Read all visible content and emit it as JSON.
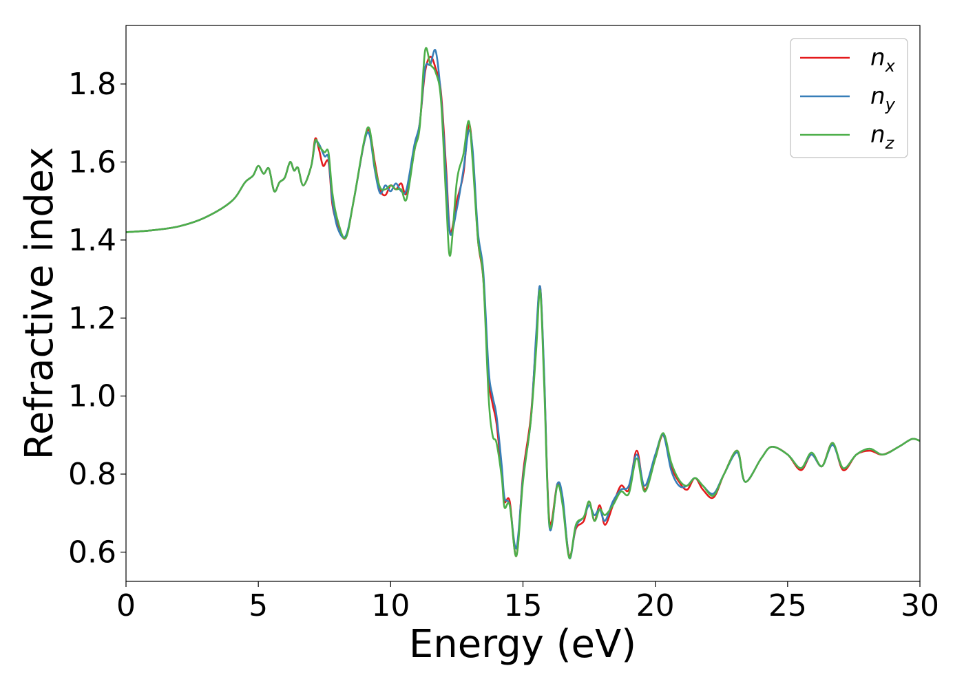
{
  "chart_data": {
    "type": "line",
    "title": "",
    "xlabel": "Energy (eV)",
    "ylabel": "Refractive index",
    "xlim": [
      0,
      30
    ],
    "ylim": [
      0.525,
      1.95
    ],
    "xticks": [
      0,
      5,
      10,
      15,
      20,
      25,
      30
    ],
    "xtick_labels": [
      "0",
      "5",
      "10",
      "15",
      "20",
      "25",
      "30"
    ],
    "yticks": [
      0.6,
      0.8,
      1.0,
      1.2,
      1.4,
      1.6,
      1.8
    ],
    "ytick_labels": [
      "0.6",
      "0.8",
      "1.0",
      "1.2",
      "1.4",
      "1.6",
      "1.8"
    ],
    "grid": false,
    "legend_position": "top-right",
    "series": [
      {
        "name": "n_x",
        "label_base": "n",
        "label_sub": "x",
        "color": "#e41a1c",
        "points": [
          [
            0,
            1.42
          ],
          [
            1,
            1.425
          ],
          [
            2,
            1.435
          ],
          [
            3,
            1.458
          ],
          [
            4,
            1.5
          ],
          [
            4.5,
            1.548
          ],
          [
            4.8,
            1.565
          ],
          [
            5,
            1.59
          ],
          [
            5.2,
            1.57
          ],
          [
            5.4,
            1.583
          ],
          [
            5.6,
            1.525
          ],
          [
            5.8,
            1.548
          ],
          [
            6,
            1.56
          ],
          [
            6.2,
            1.6
          ],
          [
            6.35,
            1.578
          ],
          [
            6.5,
            1.585
          ],
          [
            6.7,
            1.54
          ],
          [
            7,
            1.59
          ],
          [
            7.15,
            1.66
          ],
          [
            7.3,
            1.63
          ],
          [
            7.45,
            1.59
          ],
          [
            7.65,
            1.6
          ],
          [
            7.8,
            1.49
          ],
          [
            8,
            1.44
          ],
          [
            8.3,
            1.405
          ],
          [
            8.6,
            1.5
          ],
          [
            9,
            1.65
          ],
          [
            9.2,
            1.68
          ],
          [
            9.4,
            1.6
          ],
          [
            9.6,
            1.53
          ],
          [
            9.8,
            1.515
          ],
          [
            10,
            1.54
          ],
          [
            10.2,
            1.53
          ],
          [
            10.4,
            1.545
          ],
          [
            10.6,
            1.52
          ],
          [
            10.9,
            1.63
          ],
          [
            11.1,
            1.7
          ],
          [
            11.3,
            1.83
          ],
          [
            11.5,
            1.87
          ],
          [
            11.7,
            1.84
          ],
          [
            11.9,
            1.78
          ],
          [
            12.1,
            1.58
          ],
          [
            12.25,
            1.42
          ],
          [
            12.5,
            1.5
          ],
          [
            12.75,
            1.57
          ],
          [
            12.95,
            1.695
          ],
          [
            13.1,
            1.62
          ],
          [
            13.3,
            1.4
          ],
          [
            13.5,
            1.3
          ],
          [
            13.7,
            1.05
          ],
          [
            13.85,
            0.98
          ],
          [
            14,
            0.93
          ],
          [
            14.2,
            0.8
          ],
          [
            14.3,
            0.73
          ],
          [
            14.5,
            0.73
          ],
          [
            14.75,
            0.59
          ],
          [
            15,
            0.8
          ],
          [
            15.3,
            0.95
          ],
          [
            15.5,
            1.15
          ],
          [
            15.65,
            1.28
          ],
          [
            15.8,
            1.05
          ],
          [
            16,
            0.68
          ],
          [
            16.3,
            0.775
          ],
          [
            16.5,
            0.73
          ],
          [
            16.75,
            0.59
          ],
          [
            17,
            0.66
          ],
          [
            17.3,
            0.68
          ],
          [
            17.5,
            0.73
          ],
          [
            17.7,
            0.68
          ],
          [
            17.9,
            0.72
          ],
          [
            18.1,
            0.67
          ],
          [
            18.4,
            0.72
          ],
          [
            18.7,
            0.77
          ],
          [
            19,
            0.76
          ],
          [
            19.3,
            0.86
          ],
          [
            19.6,
            0.76
          ],
          [
            20,
            0.84
          ],
          [
            20.3,
            0.9
          ],
          [
            20.6,
            0.82
          ],
          [
            20.9,
            0.78
          ],
          [
            21.2,
            0.76
          ],
          [
            21.5,
            0.79
          ],
          [
            21.8,
            0.76
          ],
          [
            22.2,
            0.74
          ],
          [
            22.6,
            0.8
          ],
          [
            23.1,
            0.86
          ],
          [
            23.4,
            0.78
          ],
          [
            24,
            0.84
          ],
          [
            24.4,
            0.87
          ],
          [
            25,
            0.85
          ],
          [
            25.5,
            0.81
          ],
          [
            25.9,
            0.85
          ],
          [
            26.3,
            0.82
          ],
          [
            26.7,
            0.88
          ],
          [
            27.1,
            0.81
          ],
          [
            27.6,
            0.85
          ],
          [
            28.1,
            0.86
          ],
          [
            28.6,
            0.85
          ],
          [
            29.2,
            0.87
          ],
          [
            29.7,
            0.89
          ],
          [
            30,
            0.885
          ]
        ]
      },
      {
        "name": "n_y",
        "label_base": "n",
        "label_sub": "y",
        "color": "#377eb8",
        "points": [
          [
            0,
            1.42
          ],
          [
            1,
            1.425
          ],
          [
            2,
            1.435
          ],
          [
            3,
            1.458
          ],
          [
            4,
            1.5
          ],
          [
            4.5,
            1.548
          ],
          [
            4.8,
            1.565
          ],
          [
            5,
            1.59
          ],
          [
            5.2,
            1.57
          ],
          [
            5.4,
            1.583
          ],
          [
            5.6,
            1.525
          ],
          [
            5.8,
            1.548
          ],
          [
            6,
            1.56
          ],
          [
            6.2,
            1.6
          ],
          [
            6.35,
            1.578
          ],
          [
            6.5,
            1.585
          ],
          [
            6.7,
            1.54
          ],
          [
            7,
            1.59
          ],
          [
            7.15,
            1.65
          ],
          [
            7.3,
            1.645
          ],
          [
            7.5,
            1.615
          ],
          [
            7.65,
            1.61
          ],
          [
            7.8,
            1.5
          ],
          [
            8,
            1.43
          ],
          [
            8.3,
            1.41
          ],
          [
            8.6,
            1.5
          ],
          [
            9,
            1.65
          ],
          [
            9.2,
            1.67
          ],
          [
            9.4,
            1.58
          ],
          [
            9.6,
            1.52
          ],
          [
            9.8,
            1.54
          ],
          [
            10,
            1.525
          ],
          [
            10.2,
            1.545
          ],
          [
            10.4,
            1.525
          ],
          [
            10.6,
            1.53
          ],
          [
            10.9,
            1.645
          ],
          [
            11.1,
            1.7
          ],
          [
            11.3,
            1.84
          ],
          [
            11.5,
            1.85
          ],
          [
            11.7,
            1.885
          ],
          [
            11.9,
            1.77
          ],
          [
            12.1,
            1.56
          ],
          [
            12.25,
            1.415
          ],
          [
            12.5,
            1.48
          ],
          [
            12.75,
            1.58
          ],
          [
            12.95,
            1.68
          ],
          [
            13.1,
            1.63
          ],
          [
            13.3,
            1.42
          ],
          [
            13.5,
            1.32
          ],
          [
            13.7,
            1.07
          ],
          [
            13.85,
            1.0
          ],
          [
            14,
            0.95
          ],
          [
            14.2,
            0.82
          ],
          [
            14.3,
            0.74
          ],
          [
            14.5,
            0.72
          ],
          [
            14.75,
            0.61
          ],
          [
            15,
            0.79
          ],
          [
            15.3,
            0.94
          ],
          [
            15.5,
            1.16
          ],
          [
            15.65,
            1.28
          ],
          [
            15.8,
            1.06
          ],
          [
            16,
            0.665
          ],
          [
            16.3,
            0.775
          ],
          [
            16.5,
            0.74
          ],
          [
            16.75,
            0.585
          ],
          [
            17,
            0.665
          ],
          [
            17.3,
            0.69
          ],
          [
            17.5,
            0.72
          ],
          [
            17.7,
            0.695
          ],
          [
            17.9,
            0.71
          ],
          [
            18.1,
            0.68
          ],
          [
            18.4,
            0.73
          ],
          [
            18.7,
            0.76
          ],
          [
            19,
            0.77
          ],
          [
            19.3,
            0.85
          ],
          [
            19.6,
            0.77
          ],
          [
            20,
            0.85
          ],
          [
            20.3,
            0.9
          ],
          [
            20.6,
            0.81
          ],
          [
            20.9,
            0.77
          ],
          [
            21.2,
            0.77
          ],
          [
            21.5,
            0.79
          ],
          [
            21.8,
            0.77
          ],
          [
            22.2,
            0.75
          ],
          [
            22.6,
            0.8
          ],
          [
            23.1,
            0.855
          ],
          [
            23.4,
            0.78
          ],
          [
            24,
            0.84
          ],
          [
            24.4,
            0.87
          ],
          [
            25,
            0.85
          ],
          [
            25.5,
            0.815
          ],
          [
            25.9,
            0.85
          ],
          [
            26.3,
            0.82
          ],
          [
            26.7,
            0.875
          ],
          [
            27.1,
            0.815
          ],
          [
            27.6,
            0.85
          ],
          [
            28.1,
            0.865
          ],
          [
            28.6,
            0.85
          ],
          [
            29.2,
            0.87
          ],
          [
            29.7,
            0.89
          ],
          [
            30,
            0.885
          ]
        ]
      },
      {
        "name": "n_z",
        "label_base": "n",
        "label_sub": "z",
        "color": "#4daf4a",
        "points": [
          [
            0,
            1.42
          ],
          [
            1,
            1.425
          ],
          [
            2,
            1.435
          ],
          [
            3,
            1.458
          ],
          [
            4,
            1.5
          ],
          [
            4.5,
            1.548
          ],
          [
            4.8,
            1.565
          ],
          [
            5,
            1.59
          ],
          [
            5.2,
            1.57
          ],
          [
            5.4,
            1.583
          ],
          [
            5.6,
            1.525
          ],
          [
            5.8,
            1.548
          ],
          [
            6,
            1.56
          ],
          [
            6.2,
            1.6
          ],
          [
            6.35,
            1.578
          ],
          [
            6.5,
            1.585
          ],
          [
            6.7,
            1.54
          ],
          [
            7,
            1.59
          ],
          [
            7.15,
            1.655
          ],
          [
            7.3,
            1.64
          ],
          [
            7.5,
            1.625
          ],
          [
            7.65,
            1.625
          ],
          [
            7.8,
            1.52
          ],
          [
            8,
            1.45
          ],
          [
            8.3,
            1.405
          ],
          [
            8.6,
            1.5
          ],
          [
            9,
            1.655
          ],
          [
            9.2,
            1.685
          ],
          [
            9.4,
            1.59
          ],
          [
            9.6,
            1.535
          ],
          [
            9.8,
            1.53
          ],
          [
            10,
            1.54
          ],
          [
            10.2,
            1.53
          ],
          [
            10.4,
            1.53
          ],
          [
            10.6,
            1.505
          ],
          [
            10.9,
            1.63
          ],
          [
            11.1,
            1.69
          ],
          [
            11.3,
            1.885
          ],
          [
            11.5,
            1.85
          ],
          [
            11.7,
            1.83
          ],
          [
            11.9,
            1.76
          ],
          [
            12.1,
            1.5
          ],
          [
            12.25,
            1.36
          ],
          [
            12.5,
            1.55
          ],
          [
            12.75,
            1.62
          ],
          [
            12.95,
            1.705
          ],
          [
            13.1,
            1.6
          ],
          [
            13.3,
            1.4
          ],
          [
            13.5,
            1.3
          ],
          [
            13.7,
            1.0
          ],
          [
            13.85,
            0.9
          ],
          [
            14,
            0.88
          ],
          [
            14.2,
            0.79
          ],
          [
            14.3,
            0.715
          ],
          [
            14.5,
            0.72
          ],
          [
            14.75,
            0.59
          ],
          [
            15,
            0.78
          ],
          [
            15.3,
            0.94
          ],
          [
            15.5,
            1.12
          ],
          [
            15.65,
            1.27
          ],
          [
            15.8,
            1.03
          ],
          [
            16,
            0.67
          ],
          [
            16.3,
            0.77
          ],
          [
            16.5,
            0.72
          ],
          [
            16.75,
            0.585
          ],
          [
            17,
            0.67
          ],
          [
            17.3,
            0.69
          ],
          [
            17.5,
            0.73
          ],
          [
            17.7,
            0.68
          ],
          [
            17.9,
            0.71
          ],
          [
            18.1,
            0.695
          ],
          [
            18.4,
            0.72
          ],
          [
            18.7,
            0.755
          ],
          [
            19,
            0.75
          ],
          [
            19.3,
            0.84
          ],
          [
            19.6,
            0.755
          ],
          [
            20,
            0.84
          ],
          [
            20.3,
            0.905
          ],
          [
            20.6,
            0.83
          ],
          [
            20.9,
            0.785
          ],
          [
            21.2,
            0.77
          ],
          [
            21.5,
            0.79
          ],
          [
            21.8,
            0.77
          ],
          [
            22.2,
            0.745
          ],
          [
            22.6,
            0.8
          ],
          [
            23.1,
            0.86
          ],
          [
            23.4,
            0.78
          ],
          [
            24,
            0.84
          ],
          [
            24.4,
            0.87
          ],
          [
            25,
            0.85
          ],
          [
            25.5,
            0.815
          ],
          [
            25.9,
            0.855
          ],
          [
            26.3,
            0.82
          ],
          [
            26.7,
            0.88
          ],
          [
            27.1,
            0.815
          ],
          [
            27.6,
            0.85
          ],
          [
            28.1,
            0.865
          ],
          [
            28.6,
            0.85
          ],
          [
            29.2,
            0.87
          ],
          [
            29.7,
            0.89
          ],
          [
            30,
            0.885
          ]
        ]
      }
    ]
  }
}
